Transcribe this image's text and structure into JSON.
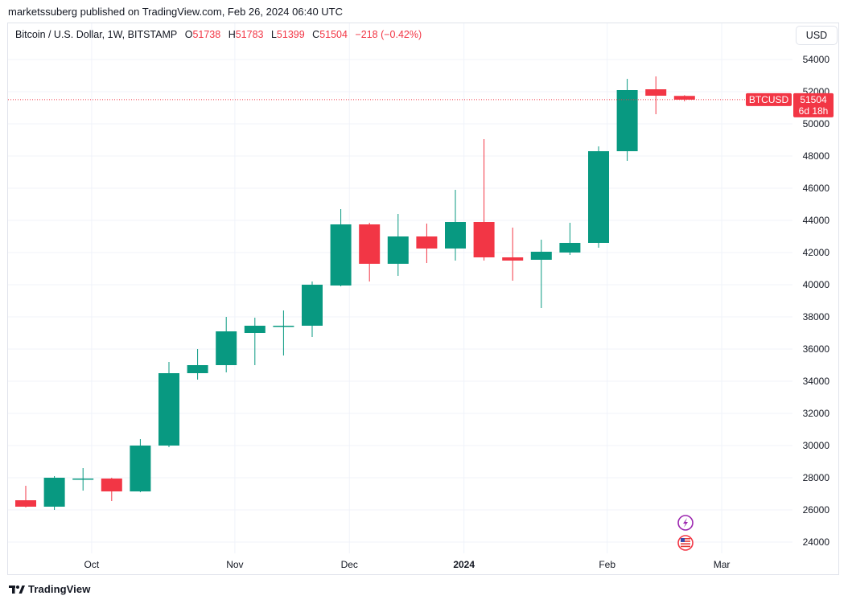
{
  "publisher_line": "marketssuberg published on TradingView.com, Feb 26, 2024 06:40 UTC",
  "legend": {
    "symbol": "Bitcoin / U.S. Dollar, 1W, BITSTAMP",
    "open_label": "O",
    "open": "51738",
    "high_label": "H",
    "high": "51783",
    "low_label": "L",
    "low": "51399",
    "close_label": "C",
    "close": "51504",
    "change": "−218 (−0.42%)"
  },
  "currency_button": "USD",
  "price_tag": {
    "symbol": "BTCUSD",
    "price": "51504",
    "countdown": "6d 18h"
  },
  "footer_brand": "TradingView",
  "colors": {
    "up": "#089981",
    "down": "#f23645",
    "grid": "#f0f3fa",
    "text": "#131722"
  },
  "icons": [
    "lightning-icon",
    "us-flag-icon",
    "tradingview-logo-icon"
  ],
  "chart_data": {
    "type": "candlestick",
    "ylim": [
      22500,
      55500
    ],
    "grid": true,
    "y_ticks": [
      24000,
      26000,
      28000,
      30000,
      32000,
      34000,
      36000,
      38000,
      40000,
      42000,
      44000,
      46000,
      48000,
      50000,
      52000,
      54000
    ],
    "x_ticks": [
      {
        "label": "Oct",
        "week": 2.3,
        "bold": false
      },
      {
        "label": "Nov",
        "week": 7.3,
        "bold": false
      },
      {
        "label": "Dec",
        "week": 11.3,
        "bold": false
      },
      {
        "label": "2024",
        "week": 15.3,
        "bold": true
      },
      {
        "label": "Feb",
        "week": 20.3,
        "bold": false
      },
      {
        "label": "Mar",
        "week": 24.3,
        "bold": false
      }
    ],
    "last_price": 51504,
    "candles": [
      {
        "o": 26600,
        "h": 27500,
        "l": 26150,
        "c": 26200
      },
      {
        "o": 26200,
        "h": 28100,
        "l": 26000,
        "c": 28000
      },
      {
        "o": 27950,
        "h": 28600,
        "l": 27200,
        "c": 27950
      },
      {
        "o": 27950,
        "h": 28000,
        "l": 26550,
        "c": 27150
      },
      {
        "o": 27150,
        "h": 30400,
        "l": 27100,
        "c": 30000
      },
      {
        "o": 30000,
        "h": 35200,
        "l": 29900,
        "c": 34500
      },
      {
        "o": 34500,
        "h": 36000,
        "l": 34100,
        "c": 35000
      },
      {
        "o": 35000,
        "h": 38000,
        "l": 34550,
        "c": 37100
      },
      {
        "o": 37000,
        "h": 37950,
        "l": 35000,
        "c": 37450
      },
      {
        "o": 37400,
        "h": 38400,
        "l": 35600,
        "c": 37450
      },
      {
        "o": 37450,
        "h": 40200,
        "l": 36750,
        "c": 40000
      },
      {
        "o": 39950,
        "h": 44700,
        "l": 39900,
        "c": 43750
      },
      {
        "o": 43750,
        "h": 43850,
        "l": 40200,
        "c": 41300
      },
      {
        "o": 41300,
        "h": 44400,
        "l": 40550,
        "c": 43000
      },
      {
        "o": 43000,
        "h": 43800,
        "l": 41350,
        "c": 42250
      },
      {
        "o": 42250,
        "h": 45900,
        "l": 41500,
        "c": 43900
      },
      {
        "o": 43900,
        "h": 49050,
        "l": 41500,
        "c": 41700
      },
      {
        "o": 41700,
        "h": 43550,
        "l": 40250,
        "c": 41500
      },
      {
        "o": 41550,
        "h": 42800,
        "l": 38550,
        "c": 42050
      },
      {
        "o": 42000,
        "h": 43850,
        "l": 41850,
        "c": 42600
      },
      {
        "o": 42600,
        "h": 48600,
        "l": 42300,
        "c": 48300
      },
      {
        "o": 48300,
        "h": 52800,
        "l": 47700,
        "c": 52100
      },
      {
        "o": 52150,
        "h": 52950,
        "l": 50600,
        "c": 51750
      },
      {
        "o": 51738,
        "h": 51783,
        "l": 51399,
        "c": 51504
      }
    ]
  }
}
